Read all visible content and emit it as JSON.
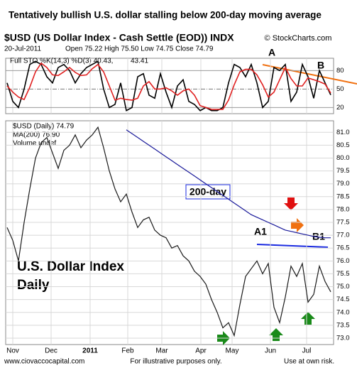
{
  "title": "Tentatively bullish U.S. dollar stalling below 200-day moving average",
  "header": {
    "symbol": "$USD (US Dollar Index - Cash Settle (EOD)) INDX",
    "source": "© StockCharts.com",
    "date": "20-Jul-2011",
    "quote": "Open 75.22 High 75.50 Low 74.75 Close 74.79"
  },
  "footer": {
    "site": "www.ciovaccocapital.com",
    "note": "For illustrative purposes only.",
    "risk": "Use at own risk."
  },
  "xlabels": [
    "Nov",
    "Dec",
    "2011",
    "Feb",
    "Mar",
    "Apr",
    "May",
    "Jun",
    "Jul"
  ],
  "chart_data": [
    {
      "type": "line",
      "legend": "Full STO %K(14,3) %D(3) 40.43,",
      "legend_value": "43.41",
      "ylim": [
        10,
        100
      ],
      "yticks": [
        20,
        50,
        80
      ],
      "annotations": [
        "A",
        "B"
      ],
      "series": [
        {
          "name": "%K",
          "color": "#000000",
          "values": [
            60,
            30,
            20,
            50,
            90,
            95,
            90,
            70,
            60,
            85,
            90,
            80,
            60,
            75,
            85,
            90,
            95,
            50,
            20,
            25,
            60,
            15,
            20,
            70,
            75,
            40,
            35,
            75,
            45,
            20,
            55,
            65,
            30,
            25,
            15,
            20,
            15,
            15,
            20,
            60,
            90,
            85,
            70,
            90,
            60,
            20,
            30,
            85,
            80,
            90,
            30,
            45,
            90,
            70,
            35,
            80,
            60,
            40.43
          ]
        },
        {
          "name": "%D",
          "color": "#e02020",
          "values": [
            55,
            45,
            37,
            33,
            53,
            78,
            92,
            85,
            73,
            72,
            78,
            85,
            77,
            72,
            73,
            83,
            90,
            78,
            55,
            32,
            35,
            33,
            32,
            35,
            55,
            62,
            50,
            50,
            52,
            47,
            40,
            47,
            50,
            40,
            23,
            20,
            17,
            17,
            17,
            32,
            57,
            78,
            82,
            82,
            73,
            57,
            37,
            45,
            65,
            85,
            67,
            55,
            55,
            68,
            65,
            62,
            58,
            43.41
          ]
        }
      ]
    },
    {
      "type": "line",
      "ylim": [
        72.75,
        81.45
      ],
      "yticks": [
        {
          "value": 73,
          "label": "73.0"
        },
        73.5,
        {
          "value": 74,
          "label": "74.0"
        },
        74.5,
        {
          "value": 75,
          "label": "75.0"
        },
        75.5,
        {
          "value": 76,
          "label": "76.0"
        },
        76.5,
        {
          "value": 77,
          "label": "77.0"
        },
        77.5,
        {
          "value": 78,
          "label": "78.0"
        },
        78.5,
        {
          "value": 79,
          "label": "79.0"
        },
        79.5,
        {
          "value": 80,
          "label": "80.0"
        },
        80.5,
        {
          "value": 81,
          "label": "81.0"
        }
      ],
      "grid": true,
      "extra_legend": "Volume undef",
      "annotations": [
        "200-day",
        "A1",
        "B1",
        "U.S. Dollar Index",
        "Daily"
      ],
      "series": [
        {
          "name": "$USD (Daily) 74.79",
          "color": "#1a1a1a",
          "values": [
            77.3,
            76.8,
            76.0,
            77.5,
            78.8,
            80.0,
            80.6,
            80.8,
            80.2,
            79.6,
            80.3,
            80.5,
            80.9,
            80.4,
            80.7,
            80.9,
            81.2,
            80.4,
            79.5,
            78.8,
            78.3,
            78.6,
            77.9,
            77.3,
            77.6,
            77.7,
            77.2,
            77.0,
            76.9,
            76.5,
            76.6,
            76.2,
            76.0,
            75.6,
            75.4,
            75.1,
            74.5,
            74.0,
            73.4,
            73.6,
            73.1,
            74.3,
            75.4,
            75.7,
            76.0,
            75.5,
            75.9,
            74.2,
            73.6,
            74.6,
            75.8,
            75.4,
            75.9,
            74.4,
            74.7,
            75.8,
            75.2,
            74.8
          ]
        },
        {
          "name": "MA(200) 76.90",
          "color": "#1a1a9a",
          "values": [
            null,
            null,
            null,
            null,
            null,
            null,
            null,
            null,
            null,
            null,
            null,
            null,
            null,
            null,
            null,
            null,
            null,
            null,
            null,
            null,
            null,
            81.1,
            80.95,
            80.8,
            80.65,
            80.5,
            80.35,
            80.2,
            80.05,
            79.9,
            79.75,
            79.6,
            79.45,
            79.3,
            79.15,
            79.0,
            78.85,
            78.7,
            78.55,
            78.4,
            78.25,
            78.1,
            77.95,
            77.8,
            77.7,
            77.6,
            77.5,
            77.4,
            77.3,
            77.2,
            77.15,
            77.1,
            77.05,
            77.0,
            76.95,
            76.92,
            76.9,
            76.9
          ]
        }
      ]
    }
  ]
}
